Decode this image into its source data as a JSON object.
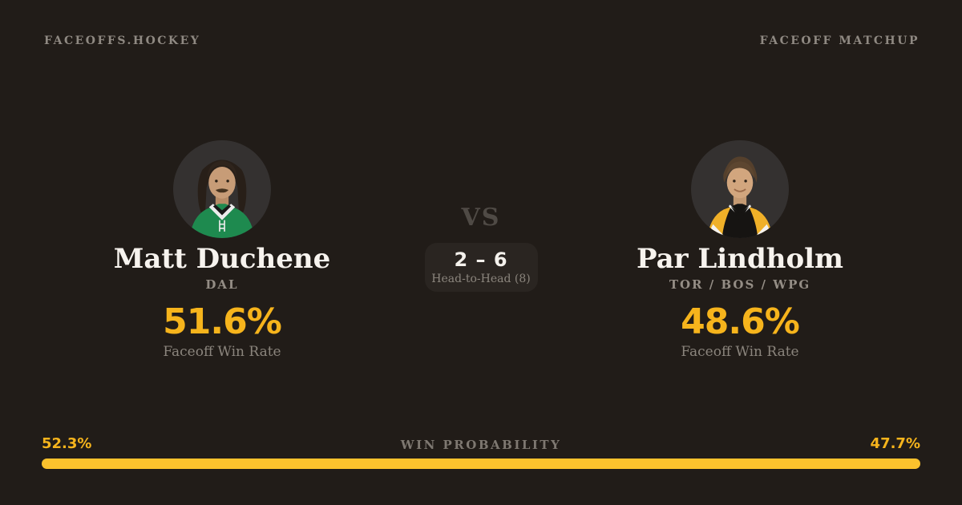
{
  "colors": {
    "background": "#211c18",
    "accent_yellow_text": "#f6b41c",
    "accent_yellow_bar": "#fcc22d",
    "text_primary": "#f7f3ee",
    "text_muted": "#8b857d",
    "vs_dim": "#4f4a45",
    "panel": "#2a2521"
  },
  "header": {
    "brand": "FACEOFFS.HOCKEY",
    "page_label": "FACEOFF MATCHUP"
  },
  "players": {
    "left": {
      "name": "Matt Duchene",
      "teams": "DAL",
      "win_rate": "51.6%",
      "win_rate_label": "Faceoff Win Rate",
      "win_probability_label": "52.3%",
      "win_probability_pct": 52.3,
      "avatar": "player-photo-green-jersey"
    },
    "right": {
      "name": "Par Lindholm",
      "teams": "TOR / BOS / WPG",
      "win_rate": "48.6%",
      "win_rate_label": "Faceoff Win Rate",
      "win_probability_label": "47.7%",
      "win_probability_pct": 47.7,
      "avatar": "player-photo-black-gold-jersey"
    }
  },
  "matchup": {
    "vs": "VS",
    "head_to_head_score": "2 – 6",
    "head_to_head_label": "Head-to-Head (8)"
  },
  "probability": {
    "label": "WIN PROBABILITY"
  }
}
